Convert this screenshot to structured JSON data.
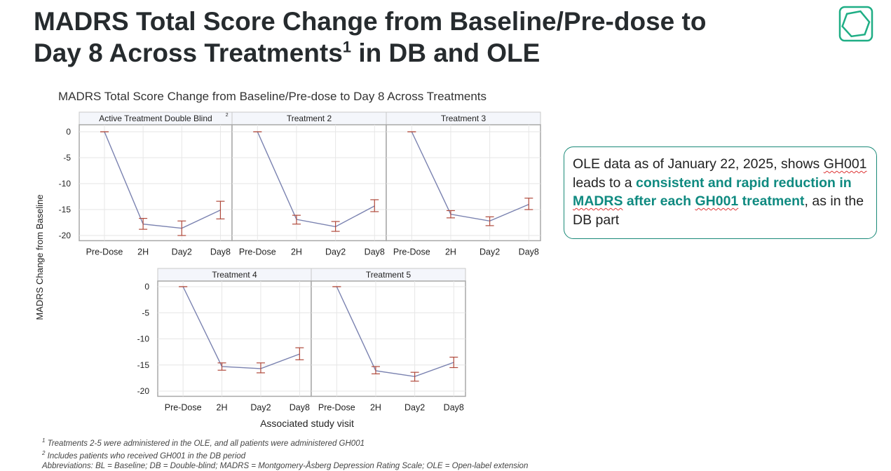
{
  "slide": {
    "title_line1": "MADRS Total Score Change from Baseline/Pre-dose to",
    "title_line2": "Day 8 Across Treatments",
    "title_sup": "1",
    "title_line2_end": " in DB and OLE"
  },
  "callout": {
    "t1": "OLE data as of January 22, 2025, shows ",
    "t2": "GH001",
    "t3": " leads to a ",
    "b1": "consistent and rapid reduction in ",
    "b2": "MADRS",
    "b3": " after each ",
    "b4": "GH001",
    "b5": " treatment",
    "t4": ", as in the DB part"
  },
  "footnotes": {
    "f1_sup": "1",
    "f1": " Treatments 2-5 were administered in the OLE, and all patients were administered GH001",
    "f2_sup": "2",
    "f2": " Includes patients who received GH001 in the DB period",
    "f3": "Abbreviations: BL = Baseline; DB = Double-blind; MADRS = Montgomery-Åsberg Depression Rating Scale; OLE = Open-label extension"
  },
  "colors": {
    "accent": "#0f8a80",
    "line": "#7a82b0",
    "errorbar": "#b04a3c",
    "logo": "#1fae85"
  },
  "chart_data": {
    "type": "line",
    "title": "MADRS Total Score Change from Baseline/Pre-dose to Day 8 Across Treatments",
    "ylabel": "MADRS Change from Baseline",
    "xlabel": "Associated study visit",
    "ylim": [
      -21,
      1.5
    ],
    "yticks": [
      0,
      -5,
      -10,
      -15,
      -20
    ],
    "categories": [
      "Pre-Dose",
      "2H",
      "Day2",
      "Day8"
    ],
    "grid": true,
    "panels": [
      {
        "name": "Active Treatment Double Blind",
        "sup": "2",
        "values": [
          0,
          -17.8,
          -18.6,
          -15.1
        ],
        "lower": [
          0,
          -18.8,
          -20.0,
          -16.8
        ],
        "upper": [
          0,
          -16.7,
          -17.2,
          -13.4
        ]
      },
      {
        "name": "Treatment 2",
        "values": [
          0,
          -16.9,
          -18.3,
          -14.3
        ],
        "lower": [
          0,
          -17.8,
          -19.2,
          -15.4
        ],
        "upper": [
          0,
          -16.1,
          -17.3,
          -13.1
        ]
      },
      {
        "name": "Treatment 3",
        "values": [
          0,
          -15.9,
          -17.2,
          -14.0
        ],
        "lower": [
          0,
          -16.6,
          -18.1,
          -15.0
        ],
        "upper": [
          0,
          -15.2,
          -16.4,
          -12.8
        ]
      },
      {
        "name": "Treatment 4",
        "values": [
          0,
          -15.3,
          -15.7,
          -12.9
        ],
        "lower": [
          0,
          -16.0,
          -16.5,
          -14.0
        ],
        "upper": [
          0,
          -14.6,
          -14.6,
          -11.7
        ]
      },
      {
        "name": "Treatment 5",
        "values": [
          0,
          -16.1,
          -17.2,
          -14.5
        ],
        "lower": [
          0,
          -16.7,
          -18.1,
          -15.5
        ],
        "upper": [
          0,
          -15.3,
          -16.4,
          -13.5
        ]
      }
    ]
  }
}
